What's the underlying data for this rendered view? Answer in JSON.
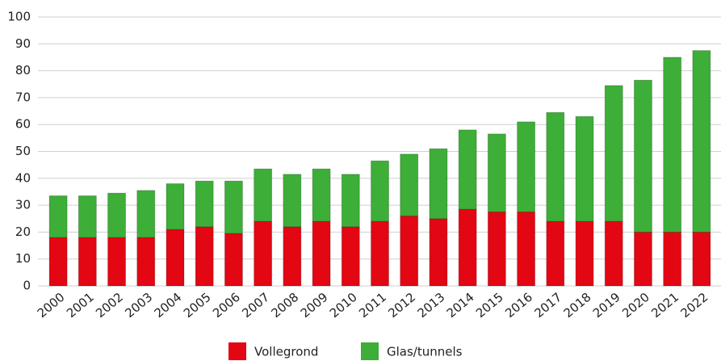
{
  "chart_data": {
    "type": "stacked_bar",
    "categories": [
      "2000",
      "2001",
      "2002",
      "2003",
      "2004",
      "2005",
      "2006",
      "2007",
      "2008",
      "2009",
      "2010",
      "2011",
      "2012",
      "2013",
      "2014",
      "2015",
      "2016",
      "2017",
      "2018",
      "2019",
      "2020",
      "2021",
      "2022"
    ],
    "series": [
      {
        "name": "Vollegrond",
        "color": "#e30613",
        "values": [
          18,
          18,
          18,
          18,
          21,
          22,
          19.5,
          24,
          22,
          24,
          22,
          24,
          26,
          25,
          28.5,
          27.5,
          27.5,
          24,
          24,
          24,
          20,
          20,
          20
        ]
      },
      {
        "name": "Glas/tunnels",
        "color": "#3dae37",
        "values": [
          15.5,
          15.5,
          16.5,
          17.5,
          17,
          17,
          19.5,
          19.5,
          19.5,
          19.5,
          19.5,
          22.5,
          23,
          26,
          29.5,
          29,
          33.5,
          40.5,
          39,
          50.5,
          56.5,
          65,
          67.5
        ]
      }
    ],
    "ylim": [
      0,
      100
    ],
    "yticks": [
      0,
      10,
      20,
      30,
      40,
      50,
      60,
      70,
      80,
      90,
      100
    ],
    "grid": true,
    "legend": "bottom"
  }
}
